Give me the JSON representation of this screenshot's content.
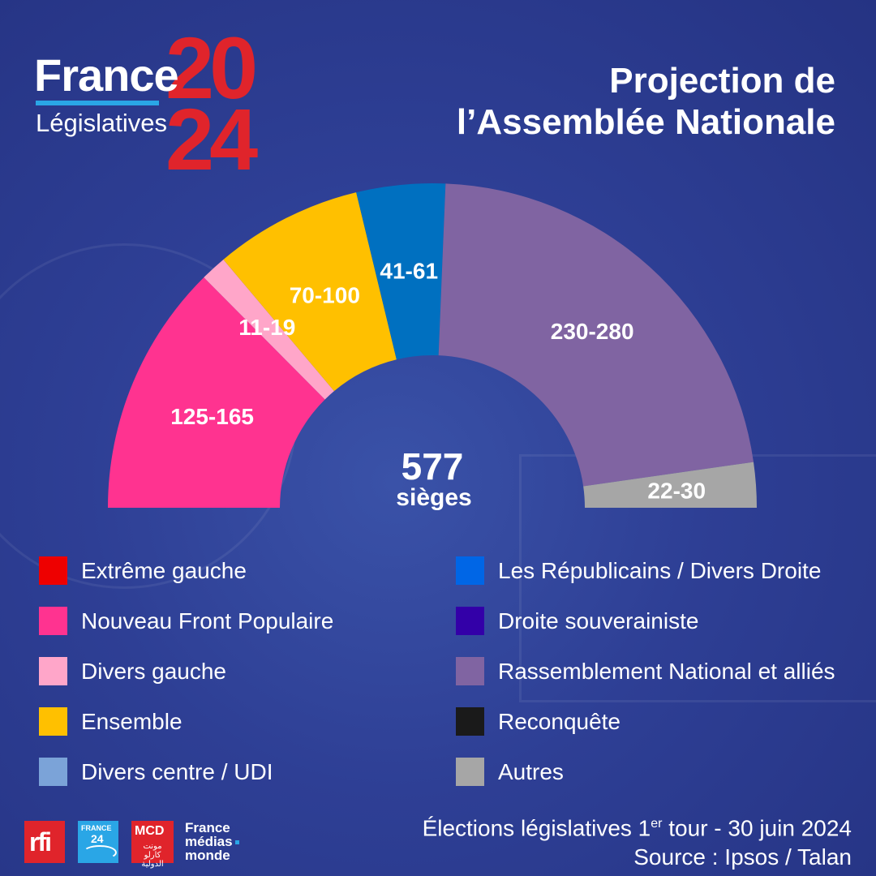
{
  "logo": {
    "word": "France",
    "subtitle": "Législatives",
    "year_top": "20",
    "year_bottom": "24"
  },
  "title": {
    "line1": "Projection de",
    "line2": "l’Assemblée Nationale"
  },
  "chart_data": {
    "type": "pie",
    "variant": "hemicycle",
    "title": "Projection de l’Assemblée Nationale",
    "total_seats": 577,
    "center_value": "577",
    "center_label": "sièges",
    "series": [
      {
        "name": "Nouveau Front Populaire",
        "label": "125-165",
        "min": 125,
        "max": 165,
        "color": "#ff3390"
      },
      {
        "name": "Divers gauche",
        "label": "11-19",
        "min": 11,
        "max": 19,
        "color": "#ffa6c9"
      },
      {
        "name": "Ensemble",
        "label": "70-100",
        "min": 70,
        "max": 100,
        "color": "#ffc000"
      },
      {
        "name": "Les Républicains / Divers Droite",
        "label": "41-61",
        "min": 41,
        "max": 61,
        "color": "#0070c0"
      },
      {
        "name": "Rassemblement National et alliés",
        "label": "230-280",
        "min": 230,
        "max": 280,
        "color": "#8064a2"
      },
      {
        "name": "Autres",
        "label": "22-30",
        "min": 22,
        "max": 30,
        "color": "#a6a6a6"
      }
    ]
  },
  "legend": {
    "left": [
      {
        "label": "Extrême gauche",
        "color": "#ee0000"
      },
      {
        "label": "Nouveau Front Populaire",
        "color": "#ff3390"
      },
      {
        "label": "Divers gauche",
        "color": "#ffa6c9"
      },
      {
        "label": "Ensemble",
        "color": "#ffc000"
      },
      {
        "label": "Divers centre / UDI",
        "color": "#7ba3d8"
      }
    ],
    "right": [
      {
        "label": "Les Républicains / Divers Droite",
        "color": "#0066e6"
      },
      {
        "label": "Droite souverainiste",
        "color": "#3300a8"
      },
      {
        "label": "Rassemblement National et alliés",
        "color": "#8064a2"
      },
      {
        "label": "Reconquête",
        "color": "#1a1a1a"
      },
      {
        "label": "Autres",
        "color": "#a6a6a6"
      }
    ]
  },
  "footer": {
    "election_pre": "Élections législatives 1",
    "election_sup": "er",
    "election_post": " tour - 30 juin 2024",
    "source": "Source : Ipsos / Talan",
    "logos": {
      "rfi": "rfi",
      "france24_line1": "FRANCE",
      "france24_line2": "24",
      "mcd_line1": "MCD",
      "mcd_line2": "مونت كارلو الدولية",
      "fmm_line1": "France",
      "fmm_line2": "médias",
      "fmm_line3": "monde"
    }
  }
}
